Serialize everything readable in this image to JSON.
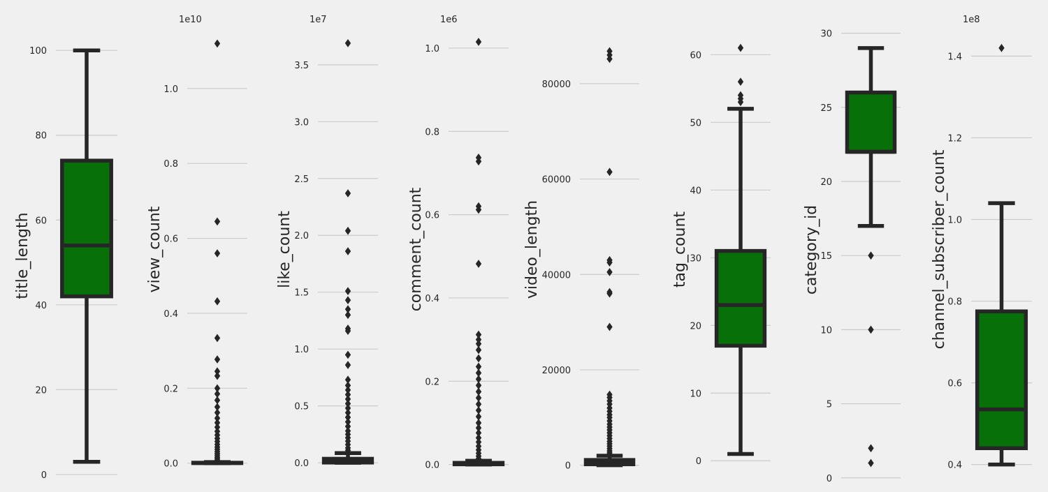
{
  "chart_data": [
    {
      "type": "box",
      "ylabel": "title_length",
      "offset": "",
      "ylim": [
        -1,
        102.5
      ],
      "yticks": [
        0,
        20,
        40,
        60,
        80,
        100
      ],
      "yticklabels": [
        "0",
        "20",
        "40",
        "60",
        "80",
        "100"
      ],
      "box": {
        "whislo": 3,
        "q1": 42,
        "med": 54,
        "q3": 74,
        "whishi": 100
      },
      "fliers": []
    },
    {
      "type": "box",
      "ylabel": "view_count",
      "offset": "1e10",
      "ylim": [
        -0.008,
        1.13
      ],
      "yticks": [
        0.0,
        0.2,
        0.4,
        0.6,
        0.8,
        1.0
      ],
      "yticklabels": [
        "0.0",
        "0.2",
        "0.4",
        "0.6",
        "0.8",
        "1.0"
      ],
      "box": {
        "whislo": 0,
        "q1": 0.0002,
        "med": 0.0005,
        "q3": 0.0012,
        "whishi": 0.003
      },
      "fliers": [
        1.12,
        0.645,
        0.56,
        0.432,
        0.334,
        0.277,
        0.245,
        0.233,
        0.2,
        0.185,
        0.168,
        0.15,
        0.135,
        0.12,
        0.108,
        0.096,
        0.085,
        0.075,
        0.066,
        0.058,
        0.05,
        0.043,
        0.037,
        0.031,
        0.026,
        0.021,
        0.016,
        0.012,
        0.008,
        0.005
      ]
    },
    {
      "type": "box",
      "ylabel": "like_count",
      "offset": "1e7",
      "ylim": [
        -0.03,
        3.72
      ],
      "yticks": [
        0.0,
        0.5,
        1.0,
        1.5,
        2.0,
        2.5,
        3.0,
        3.5
      ],
      "yticklabels": [
        "0.0",
        "0.5",
        "1.0",
        "1.5",
        "2.0",
        "2.5",
        "3.0",
        "3.5"
      ],
      "box": {
        "whislo": 0,
        "q1": 0.002,
        "med": 0.01,
        "q3": 0.035,
        "whishi": 0.085
      },
      "fliers": [
        3.69,
        2.37,
        2.04,
        1.86,
        1.51,
        1.43,
        1.35,
        1.3,
        1.18,
        1.16,
        0.95,
        0.86,
        0.73,
        0.68,
        0.64,
        0.6,
        0.56,
        0.52,
        0.48,
        0.44,
        0.4,
        0.36,
        0.32,
        0.28,
        0.25,
        0.22,
        0.19,
        0.16,
        0.13,
        0.11
      ]
    },
    {
      "type": "box",
      "ylabel": "comment_count",
      "offset": "1e6",
      "ylim": [
        -0.004,
        1.02
      ],
      "yticks": [
        0.0,
        0.2,
        0.4,
        0.6,
        0.8,
        1.0
      ],
      "yticklabels": [
        "0.0",
        "0.2",
        "0.4",
        "0.6",
        "0.8",
        "1.0"
      ],
      "box": {
        "whislo": 0,
        "q1": 0.0005,
        "med": 0.0015,
        "q3": 0.004,
        "whishi": 0.009
      },
      "fliers": [
        1.015,
        0.737,
        0.728,
        0.62,
        0.612,
        0.482,
        0.312,
        0.3,
        0.29,
        0.275,
        0.255,
        0.235,
        0.22,
        0.205,
        0.19,
        0.175,
        0.16,
        0.145,
        0.13,
        0.115,
        0.1,
        0.088,
        0.076,
        0.064,
        0.054,
        0.044,
        0.035,
        0.027,
        0.02,
        0.014
      ]
    },
    {
      "type": "box",
      "ylabel": "video_length",
      "offset": "",
      "ylim": [
        -200,
        89200
      ],
      "yticks": [
        0,
        20000,
        40000,
        60000,
        80000
      ],
      "yticklabels": [
        "0",
        "20000",
        "40000",
        "60000",
        "80000"
      ],
      "box": {
        "whislo": 0,
        "q1": 200,
        "med": 600,
        "q3": 1100,
        "whishi": 2000
      },
      "fliers": [
        86800,
        86000,
        85200,
        61500,
        43000,
        42500,
        40500,
        36300,
        36000,
        29000,
        14800,
        14200,
        13500,
        12800,
        12000,
        11300,
        10600,
        10000,
        9300,
        8600,
        8000,
        7400,
        6800,
        6200,
        5600,
        5000,
        4500,
        4000,
        3500,
        3000,
        2600,
        2300
      ]
    },
    {
      "type": "box",
      "ylabel": "tag_count",
      "offset": "",
      "ylim": [
        -0.8,
        62.2
      ],
      "yticks": [
        0,
        10,
        20,
        30,
        40,
        50,
        60
      ],
      "yticklabels": [
        "0",
        "10",
        "20",
        "30",
        "40",
        "50",
        "60"
      ],
      "box": {
        "whislo": 1,
        "q1": 17,
        "med": 23,
        "q3": 31,
        "whishi": 52
      },
      "fliers": [
        61,
        56,
        54,
        53.5,
        53
      ]
    },
    {
      "type": "box",
      "ylabel": "category_id",
      "offset": "",
      "ylim": [
        -0.2,
        30.5
      ],
      "yticks": [
        0,
        5,
        10,
        15,
        20,
        25,
        30
      ],
      "yticklabels": [
        "0",
        "5",
        "10",
        "15",
        "20",
        "25",
        "30"
      ],
      "box": {
        "whislo": 17,
        "q1": 22,
        "med": 22,
        "q3": 26,
        "whishi": 29
      },
      "fliers": [
        15,
        10,
        2,
        1
      ]
    },
    {
      "type": "box",
      "ylabel": "channel_subscriber_count",
      "offset": "1e8",
      "ylim": [
        0.396,
        1.44
      ],
      "yticks": [
        0.4,
        0.6,
        0.8,
        1.0,
        1.2,
        1.4
      ],
      "yticklabels": [
        "0.4",
        "0.6",
        "0.8",
        "1.0",
        "1.2",
        "1.4"
      ],
      "box": {
        "whislo": 0.4,
        "q1": 0.44,
        "med": 0.535,
        "q3": 0.775,
        "whishi": 1.04
      },
      "fliers": [
        1.42
      ]
    }
  ],
  "colors": {
    "background": "#f0f0f0",
    "box_fill": "#087008",
    "line": "#262626",
    "grid": "#cbcbcb"
  }
}
